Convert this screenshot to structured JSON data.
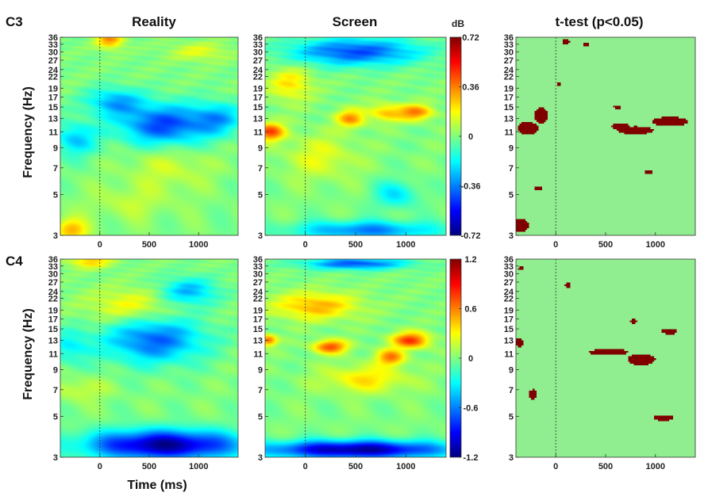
{
  "figure": {
    "col_titles": [
      "Reality",
      "Screen",
      "t-test (p<0.05)"
    ],
    "row_labels": [
      "C3",
      "C4"
    ],
    "ylabel": "Frequency (Hz)",
    "xlabel": "Time (ms)"
  },
  "chart_data": {
    "type": "heatmap",
    "x": {
      "label": "Time (ms)",
      "range": [
        -400,
        1400
      ],
      "ticks": [
        0,
        500,
        1000
      ]
    },
    "y": {
      "label": "Frequency (Hz)",
      "scale": "log",
      "range": [
        3,
        36
      ],
      "ticks": [
        3,
        5,
        7,
        9,
        11,
        13,
        15,
        17,
        19,
        22,
        24,
        27,
        30,
        33,
        36
      ]
    },
    "rows": [
      {
        "channel": "C3",
        "colorbar": {
          "label": "dB",
          "range": [
            -0.72,
            0.72
          ],
          "ticks": [
            "0.72",
            "0.36",
            "0",
            "-0.36",
            "-0.72"
          ]
        },
        "panels": [
          {
            "title": "Reality",
            "kind": "power",
            "blobs": [
              {
                "t": 650,
                "f": 12,
                "amp": -0.62,
                "st": 320,
                "sf": 0.18
              },
              {
                "t": 150,
                "f": 16,
                "amp": -0.4,
                "st": 200,
                "sf": 0.12
              },
              {
                "t": -250,
                "f": 10,
                "amp": -0.35,
                "st": 150,
                "sf": 0.15
              },
              {
                "t": 1200,
                "f": 13,
                "amp": -0.35,
                "st": 180,
                "sf": 0.14
              },
              {
                "t": 100,
                "f": 35,
                "amp": 0.45,
                "st": 100,
                "sf": 0.08
              },
              {
                "t": -300,
                "f": 3.2,
                "amp": 0.4,
                "st": 120,
                "sf": 0.1
              },
              {
                "t": 700,
                "f": 7,
                "amp": 0.15,
                "st": 300,
                "sf": 0.2
              },
              {
                "t": 1000,
                "f": 30,
                "amp": 0.2,
                "st": 200,
                "sf": 0.08
              },
              {
                "t": 300,
                "f": 4.5,
                "amp": 0.12,
                "st": 300,
                "sf": 0.15
              }
            ]
          },
          {
            "title": "Screen",
            "kind": "power",
            "blobs": [
              {
                "t": 500,
                "f": 30,
                "amp": -0.6,
                "st": 450,
                "sf": 0.12
              },
              {
                "t": -350,
                "f": 11,
                "amp": 0.6,
                "st": 100,
                "sf": 0.08
              },
              {
                "t": 450,
                "f": 13,
                "amp": 0.45,
                "st": 100,
                "sf": 0.08
              },
              {
                "t": 1100,
                "f": 14,
                "amp": 0.5,
                "st": 120,
                "sf": 0.07
              },
              {
                "t": 800,
                "f": 14,
                "amp": 0.35,
                "st": 120,
                "sf": 0.08
              },
              {
                "t": -150,
                "f": 20,
                "amp": 0.3,
                "st": 150,
                "sf": 0.15
              },
              {
                "t": 600,
                "f": 3.2,
                "amp": -0.5,
                "st": 500,
                "sf": 0.08
              },
              {
                "t": 900,
                "f": 5,
                "amp": -0.3,
                "st": 150,
                "sf": 0.12
              },
              {
                "t": 150,
                "f": 8,
                "amp": 0.2,
                "st": 250,
                "sf": 0.2
              }
            ]
          },
          {
            "title": "t-test (p<0.05)",
            "kind": "mask",
            "regions": [
              {
                "t": -280,
                "f": 11.5,
                "rt": 110,
                "rf": 0.08
              },
              {
                "t": -150,
                "f": 13.5,
                "rt": 70,
                "rf": 0.1
              },
              {
                "t": 800,
                "f": 11.2,
                "rt": 180,
                "rf": 0.05
              },
              {
                "t": 1150,
                "f": 12.5,
                "rt": 180,
                "rf": 0.06
              },
              {
                "t": 650,
                "f": 11.8,
                "rt": 90,
                "rf": 0.04
              },
              {
                "t": -350,
                "f": 3.4,
                "rt": 80,
                "rf": 0.08
              },
              {
                "t": 100,
                "f": 34,
                "rt": 40,
                "rf": 0.04
              },
              {
                "t": -170,
                "f": 5.4,
                "rt": 40,
                "rf": 0.025
              },
              {
                "t": 930,
                "f": 6.6,
                "rt": 40,
                "rf": 0.025
              },
              {
                "t": 300,
                "f": 33,
                "rt": 30,
                "rf": 0.03
              },
              {
                "t": 620,
                "f": 15,
                "rt": 40,
                "rf": 0.025
              },
              {
                "t": 30,
                "f": 20,
                "rt": 25,
                "rf": 0.025
              }
            ]
          }
        ]
      },
      {
        "channel": "C4",
        "colorbar": {
          "label": "",
          "range": [
            -1.2,
            1.2
          ],
          "ticks": [
            "1.2",
            "0.6",
            "0",
            "-0.6",
            "-1.2"
          ]
        },
        "panels": [
          {
            "title": "Reality",
            "kind": "power",
            "blobs": [
              {
                "t": 650,
                "f": 3.5,
                "amp": -0.95,
                "st": 550,
                "sf": 0.13
              },
              {
                "t": 550,
                "f": 13,
                "amp": -0.55,
                "st": 350,
                "sf": 0.2
              },
              {
                "t": 900,
                "f": 24,
                "amp": -0.4,
                "st": 200,
                "sf": 0.12
              },
              {
                "t": -300,
                "f": 12,
                "amp": -0.25,
                "st": 150,
                "sf": 0.15
              },
              {
                "t": -100,
                "f": 35,
                "amp": 0.35,
                "st": 150,
                "sf": 0.06
              },
              {
                "t": 300,
                "f": 20,
                "amp": 0.25,
                "st": 300,
                "sf": 0.15
              },
              {
                "t": -200,
                "f": 7,
                "amp": 0.15,
                "st": 200,
                "sf": 0.1
              }
            ]
          },
          {
            "title": "Screen",
            "kind": "power",
            "blobs": [
              {
                "t": 500,
                "f": 3.3,
                "amp": -0.95,
                "st": 650,
                "sf": 0.08
              },
              {
                "t": 500,
                "f": 34,
                "amp": -0.6,
                "st": 350,
                "sf": 0.05
              },
              {
                "t": 250,
                "f": 12,
                "amp": 0.6,
                "st": 120,
                "sf": 0.06
              },
              {
                "t": 1050,
                "f": 13,
                "amp": 0.65,
                "st": 130,
                "sf": 0.07
              },
              {
                "t": 850,
                "f": 10.5,
                "amp": 0.5,
                "st": 100,
                "sf": 0.07
              },
              {
                "t": -370,
                "f": 13,
                "amp": 0.55,
                "st": 60,
                "sf": 0.05
              },
              {
                "t": 100,
                "f": 20,
                "amp": 0.4,
                "st": 300,
                "sf": 0.12
              },
              {
                "t": 600,
                "f": 8,
                "amp": 0.3,
                "st": 300,
                "sf": 0.12
              }
            ]
          },
          {
            "title": "t-test (p<0.05)",
            "kind": "mask",
            "regions": [
              {
                "t": 860,
                "f": 10.2,
                "rt": 140,
                "rf": 0.07
              },
              {
                "t": 530,
                "f": 11.2,
                "rt": 200,
                "rf": 0.04
              },
              {
                "t": 1080,
                "f": 4.9,
                "rt": 100,
                "rf": 0.035
              },
              {
                "t": -370,
                "f": 12.6,
                "rt": 50,
                "rf": 0.05
              },
              {
                "t": -230,
                "f": 6.6,
                "rt": 40,
                "rf": 0.06
              },
              {
                "t": 1140,
                "f": 14.5,
                "rt": 80,
                "rf": 0.035
              },
              {
                "t": -350,
                "f": 32,
                "rt": 30,
                "rf": 0.02
              },
              {
                "t": 120,
                "f": 26,
                "rt": 30,
                "rf": 0.03
              },
              {
                "t": 780,
                "f": 16.5,
                "rt": 40,
                "rf": 0.025
              }
            ]
          }
        ]
      }
    ]
  }
}
